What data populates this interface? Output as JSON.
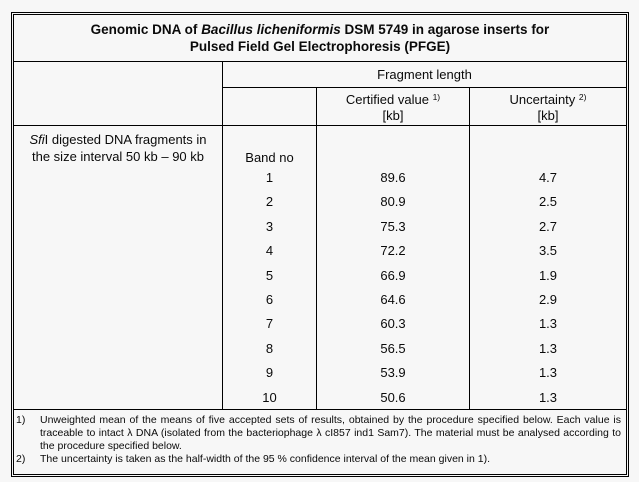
{
  "page": {
    "background": "#f7f7f7",
    "border_color": "#000000",
    "text_color": "#0a0a0a"
  },
  "title": {
    "prefix": "Genomic DNA of ",
    "organism": "Bacillus licheniformis",
    "suffix": " DSM 5749 in agarose inserts for",
    "line2": "Pulsed Field Gel Electrophoresis (PFGE)"
  },
  "headers": {
    "group": "Fragment length",
    "certified_label": "Certified value",
    "certified_sup": "1)",
    "certified_unit": "[kb]",
    "uncertainty_label": "Uncertainty",
    "uncertainty_sup": "2)",
    "uncertainty_unit": "[kb]",
    "band": "Band no"
  },
  "sample": {
    "enzyme_italic": "Sfi",
    "line1_rest": "I digested DNA fragments in",
    "line2": "the size interval 50 kb – 90 kb"
  },
  "rows": [
    {
      "band": "1",
      "certified_kb": "89.6",
      "uncertainty_kb": "4.7"
    },
    {
      "band": "2",
      "certified_kb": "80.9",
      "uncertainty_kb": "2.5"
    },
    {
      "band": "3",
      "certified_kb": "75.3",
      "uncertainty_kb": "2.7"
    },
    {
      "band": "4",
      "certified_kb": "72.2",
      "uncertainty_kb": "3.5"
    },
    {
      "band": "5",
      "certified_kb": "66.9",
      "uncertainty_kb": "1.9"
    },
    {
      "band": "6",
      "certified_kb": "64.6",
      "uncertainty_kb": "2.9"
    },
    {
      "band": "7",
      "certified_kb": "60.3",
      "uncertainty_kb": "1.3"
    },
    {
      "band": "8",
      "certified_kb": "56.5",
      "uncertainty_kb": "1.3"
    },
    {
      "band": "9",
      "certified_kb": "53.9",
      "uncertainty_kb": "1.3"
    },
    {
      "band": "10",
      "certified_kb": "50.6",
      "uncertainty_kb": "1.3"
    }
  ],
  "footnotes": [
    {
      "marker": "1)",
      "text": "Unweighted mean of the means of five accepted sets of results, obtained by the procedure specified below. Each value is traceable to intact λ DNA (isolated from the bacteriophage λ cI857 ind1 Sam7). The material must be analysed according to the procedure specified below."
    },
    {
      "marker": "2)",
      "text": "The uncertainty is taken as the half-width of the 95 % confidence interval of the mean given in 1)."
    }
  ]
}
